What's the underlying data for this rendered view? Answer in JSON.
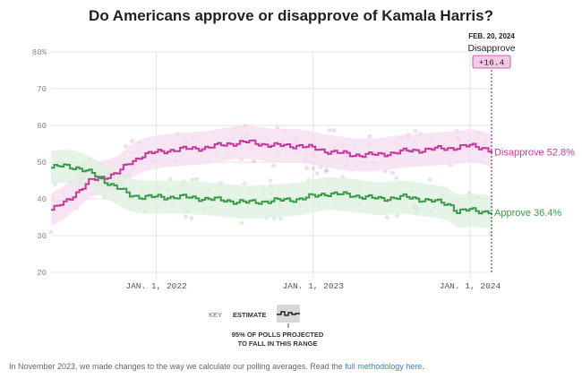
{
  "title": "Do Americans approve or disapprove of Kamala Harris?",
  "chart_data": {
    "type": "line",
    "title": "Do Americans approve or disapprove of Kamala Harris?",
    "ylim": [
      20,
      80
    ],
    "y_ticks": [
      "20",
      "30",
      "40",
      "50",
      "60",
      "70",
      "80%"
    ],
    "x_range": [
      "2021-05-01",
      "2024-02-20"
    ],
    "x_ticks": [
      {
        "date": "2022-01-01",
        "label": "JAN. 1, 2022"
      },
      {
        "date": "2023-01-01",
        "label": "JAN. 1, 2023"
      },
      {
        "date": "2024-01-01",
        "label": "JAN. 1, 2024"
      }
    ],
    "grid": true,
    "series": [
      {
        "name": "Disapprove",
        "color": "#c2389e",
        "band_color": "#f6dcef",
        "end_label": "Disapprove 52.8%",
        "x": [
          "2021-05-01",
          "2021-06-01",
          "2021-07-01",
          "2021-08-01",
          "2021-09-01",
          "2021-10-01",
          "2021-11-01",
          "2021-12-01",
          "2022-01-15",
          "2022-03-01",
          "2022-05-01",
          "2022-06-15",
          "2022-08-01",
          "2022-10-01",
          "2022-12-01",
          "2023-02-01",
          "2023-04-01",
          "2023-06-01",
          "2023-08-01",
          "2023-10-01",
          "2023-12-01",
          "2024-01-01",
          "2024-02-01",
          "2024-02-20"
        ],
        "y": [
          37,
          39,
          42,
          45,
          46,
          47,
          50,
          52,
          53,
          53.5,
          54,
          55,
          55.5,
          54.5,
          54.5,
          53,
          52,
          52,
          53,
          53.5,
          54,
          54.5,
          54,
          52.8
        ]
      },
      {
        "name": "Approve",
        "color": "#3a9a4a",
        "band_color": "#ddf0df",
        "end_label": "Approve 36.4%",
        "x": [
          "2021-05-01",
          "2021-06-01",
          "2021-07-01",
          "2021-08-01",
          "2021-09-01",
          "2021-10-01",
          "2021-11-01",
          "2021-12-01",
          "2022-01-15",
          "2022-03-01",
          "2022-05-01",
          "2022-06-15",
          "2022-08-01",
          "2022-10-01",
          "2022-12-01",
          "2023-02-01",
          "2023-04-01",
          "2023-06-01",
          "2023-08-01",
          "2023-10-01",
          "2023-11-15",
          "2023-12-01",
          "2024-01-01",
          "2024-02-20"
        ],
        "y": [
          48.5,
          49,
          48.5,
          47,
          45,
          43,
          41,
          40.5,
          40.5,
          40.5,
          40,
          39.5,
          39,
          39.5,
          40,
          41.5,
          41,
          40,
          40.5,
          39.5,
          38.5,
          36.5,
          37,
          36.4
        ]
      }
    ],
    "annotation": {
      "date_label": "FEB. 20, 2024",
      "label": "Disapprove",
      "value": "+16.4"
    }
  },
  "key": {
    "label": "KEY",
    "estimate": "ESTIMATE",
    "range_note_1": "95% OF POLLS PROJECTED",
    "range_note_2": "TO FALL IN THIS RANGE"
  },
  "footnote": {
    "text": "In November 2023, we made changes to the way we calculate our polling averages. Read the ",
    "link_text": "full methodology here",
    "end": "."
  }
}
